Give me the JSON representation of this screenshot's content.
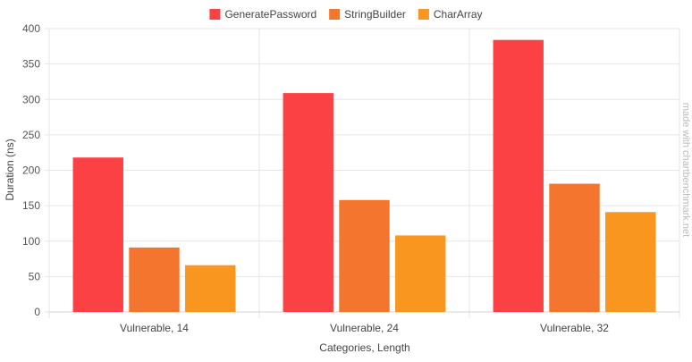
{
  "chart_data": {
    "type": "bar",
    "categories": [
      "Vulnerable, 14",
      "Vulnerable, 24",
      "Vulnerable, 32"
    ],
    "series": [
      {
        "name": "GeneratePassword",
        "color": "#fc4144",
        "values": [
          218,
          309,
          384
        ]
      },
      {
        "name": "StringBuilder",
        "color": "#f4752e",
        "values": [
          91,
          158,
          181
        ]
      },
      {
        "name": "CharArray",
        "color": "#f9961f",
        "values": [
          66,
          108,
          141
        ]
      }
    ],
    "xlabel": "Categories, Length",
    "ylabel": "Duration (ns)",
    "ylim": [
      0,
      400
    ],
    "yticks": [
      0,
      50,
      100,
      150,
      200,
      250,
      300,
      350,
      400
    ],
    "grid": true,
    "legend_position": "top-center",
    "watermark": "made with chartbenchmark.net"
  }
}
